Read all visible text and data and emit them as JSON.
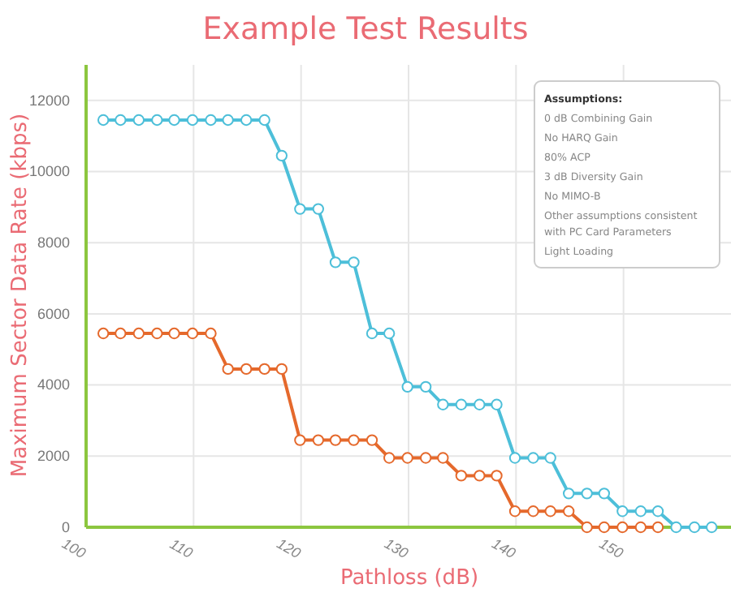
{
  "chart_data": {
    "type": "line",
    "title": "Example Test Results",
    "xlabel": "Pathloss (dB)",
    "ylabel": "Maximum Sector Data Rate (kbps)",
    "x": [
      101.6,
      103.2,
      104.9,
      106.6,
      108.2,
      109.9,
      111.6,
      113.2,
      114.9,
      116.6,
      118.2,
      119.9,
      121.6,
      123.2,
      124.9,
      126.6,
      128.2,
      129.9,
      131.6,
      133.2,
      134.9,
      136.6,
      138.2,
      139.9,
      141.6,
      143.2,
      144.9,
      146.6,
      148.2,
      149.9,
      151.6,
      153.2,
      154.9,
      156.6,
      158.2
    ],
    "series": [
      {
        "color": "#e5692c",
        "values": [
          5450,
          5450,
          5450,
          5450,
          5450,
          5450,
          5450,
          4450,
          4450,
          4450,
          4450,
          2450,
          2450,
          2450,
          2450,
          2450,
          1950,
          1950,
          1950,
          1950,
          1450,
          1450,
          1450,
          450,
          450,
          450,
          450,
          0,
          0,
          0,
          0,
          0,
          null,
          null,
          null
        ]
      },
      {
        "color": "#4dbfd9",
        "values": [
          11450,
          11450,
          11450,
          11450,
          11450,
          11450,
          11450,
          11450,
          11450,
          11450,
          10450,
          8950,
          8950,
          7450,
          7450,
          5450,
          5450,
          3950,
          3950,
          3450,
          3450,
          3450,
          3450,
          1950,
          1950,
          1950,
          950,
          950,
          950,
          450,
          450,
          450,
          0,
          0,
          0
        ]
      }
    ],
    "xlim": [
      100,
      160
    ],
    "xticks": [
      100,
      110,
      120,
      130,
      140,
      150
    ],
    "ylim": [
      0,
      13000
    ],
    "yticks": [
      0,
      2000,
      4000,
      6000,
      8000,
      10000,
      12000
    ],
    "grid": true,
    "marker": "circle",
    "line_style": "solid",
    "annotations": [
      "Assumptions:",
      "0 dB Combining Gain",
      "No HARQ Gain",
      "80% ACP",
      "3 dB Diversity Gain",
      "No MIMO-B",
      "Other assumptions consistent with PC Card Parameters",
      "Light Loading"
    ]
  }
}
